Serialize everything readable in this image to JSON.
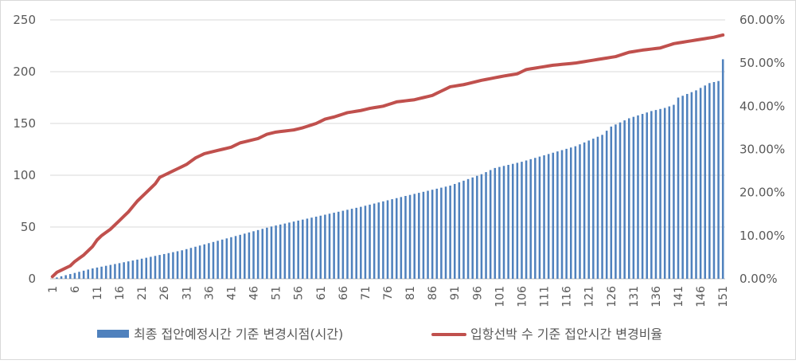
{
  "chart_data": {
    "type": "bar+line",
    "x": {
      "start": 1,
      "end": 151,
      "tick_labels": [
        "1",
        "6",
        "11",
        "16",
        "21",
        "26",
        "31",
        "36",
        "41",
        "46",
        "51",
        "56",
        "61",
        "66",
        "71",
        "76",
        "81",
        "86",
        "91",
        "96",
        "101",
        "106",
        "111",
        "116",
        "121",
        "126",
        "131",
        "136",
        "141",
        "146",
        "151"
      ]
    },
    "y_left": {
      "ylim": [
        0,
        250
      ],
      "ticks": [
        "0",
        "50",
        "100",
        "150",
        "200",
        "250"
      ]
    },
    "y_right": {
      "ylim": [
        0,
        0.6
      ],
      "ticks": [
        "0.00%",
        "10.00%",
        "20.00%",
        "30.00%",
        "40.00%",
        "50.00%",
        "60.00%"
      ]
    },
    "grid": true,
    "legend_position": "bottom",
    "series": [
      {
        "name": "최종 접안예정시간 기준 변경시점(시간)",
        "type": "bar",
        "axis": "left",
        "color": "#4f81bd",
        "values_points": [
          [
            1,
            0
          ],
          [
            2,
            1.3
          ],
          [
            10,
            10
          ],
          [
            20,
            18.5
          ],
          [
            30,
            27.5
          ],
          [
            40,
            39
          ],
          [
            50,
            50.5
          ],
          [
            60,
            60
          ],
          [
            70,
            69.5
          ],
          [
            80,
            80
          ],
          [
            90,
            90
          ],
          [
            97,
            101
          ],
          [
            100,
            107
          ],
          [
            106,
            113
          ],
          [
            110,
            118
          ],
          [
            118,
            128
          ],
          [
            124,
            139
          ],
          [
            126,
            147
          ],
          [
            130,
            155
          ],
          [
            135,
            162
          ],
          [
            138,
            165
          ],
          [
            140,
            168
          ],
          [
            141,
            175
          ],
          [
            145,
            182
          ],
          [
            148,
            189
          ],
          [
            150,
            191
          ],
          [
            151,
            212
          ]
        ]
      },
      {
        "name": "입항선박 수 기준 접안시간 변경비율",
        "type": "line",
        "axis": "right",
        "color": "#c0504d",
        "values_points": [
          [
            1,
            0.005
          ],
          [
            2,
            0.015
          ],
          [
            3,
            0.02
          ],
          [
            5,
            0.03
          ],
          [
            6,
            0.04
          ],
          [
            8,
            0.055
          ],
          [
            10,
            0.075
          ],
          [
            11,
            0.09
          ],
          [
            12,
            0.1
          ],
          [
            14,
            0.115
          ],
          [
            16,
            0.135
          ],
          [
            18,
            0.155
          ],
          [
            20,
            0.18
          ],
          [
            22,
            0.2
          ],
          [
            24,
            0.22
          ],
          [
            25,
            0.235
          ],
          [
            26,
            0.24
          ],
          [
            28,
            0.25
          ],
          [
            30,
            0.26
          ],
          [
            31,
            0.265
          ],
          [
            33,
            0.28
          ],
          [
            35,
            0.29
          ],
          [
            37,
            0.295
          ],
          [
            39,
            0.3
          ],
          [
            41,
            0.305
          ],
          [
            43,
            0.315
          ],
          [
            45,
            0.32
          ],
          [
            47,
            0.325
          ],
          [
            49,
            0.335
          ],
          [
            51,
            0.34
          ],
          [
            55,
            0.345
          ],
          [
            57,
            0.35
          ],
          [
            60,
            0.36
          ],
          [
            62,
            0.37
          ],
          [
            64,
            0.375
          ],
          [
            67,
            0.385
          ],
          [
            70,
            0.39
          ],
          [
            72,
            0.395
          ],
          [
            75,
            0.4
          ],
          [
            78,
            0.41
          ],
          [
            82,
            0.415
          ],
          [
            86,
            0.425
          ],
          [
            88,
            0.435
          ],
          [
            90,
            0.445
          ],
          [
            93,
            0.45
          ],
          [
            97,
            0.46
          ],
          [
            102,
            0.47
          ],
          [
            105,
            0.475
          ],
          [
            107,
            0.485
          ],
          [
            110,
            0.49
          ],
          [
            113,
            0.495
          ],
          [
            118,
            0.5
          ],
          [
            121,
            0.505
          ],
          [
            124,
            0.51
          ],
          [
            127,
            0.515
          ],
          [
            130,
            0.525
          ],
          [
            133,
            0.53
          ],
          [
            137,
            0.535
          ],
          [
            140,
            0.545
          ],
          [
            143,
            0.55
          ],
          [
            146,
            0.555
          ],
          [
            149,
            0.56
          ],
          [
            151,
            0.565
          ]
        ]
      }
    ]
  },
  "legend": {
    "bar_label": "최종 접안예정시간 기준 변경시점(시간)",
    "line_label": "입항선박 수 기준 접안시간 변경비율"
  }
}
